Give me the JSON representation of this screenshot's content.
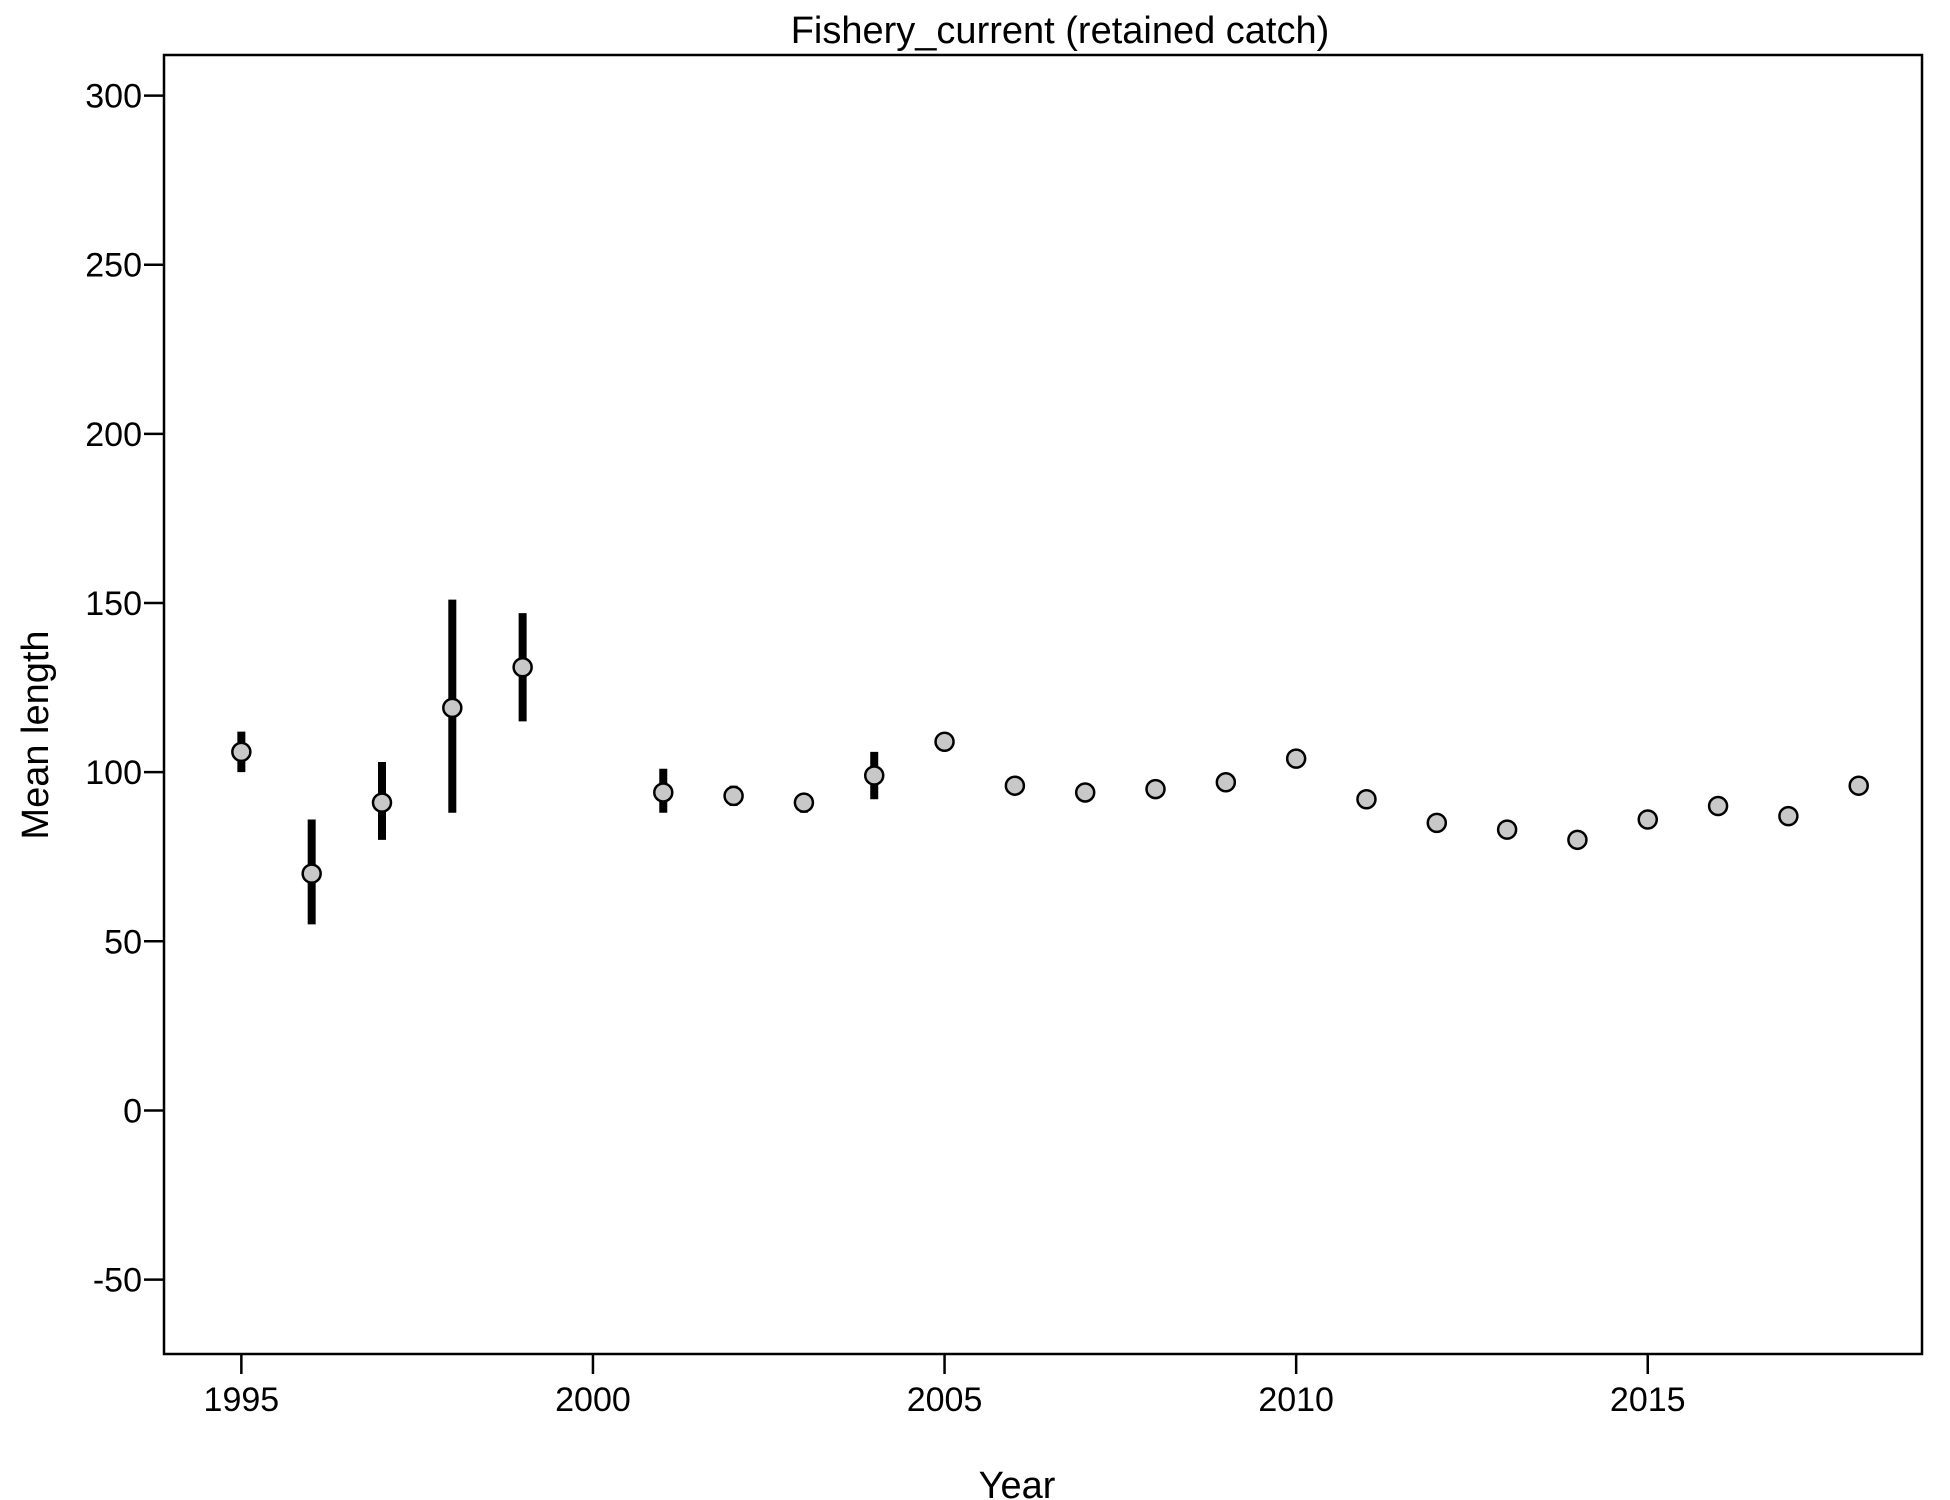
{
  "chart_data": {
    "type": "scatter",
    "title": "Fishery_current (retained catch)",
    "xlabel": "Year",
    "ylabel": "Mean length",
    "xlim": [
      1993.9,
      2018.9
    ],
    "ylim": [
      -72,
      312
    ],
    "x_ticks": [
      "1995",
      "2000",
      "2005",
      "2010",
      "2015"
    ],
    "y_ticks": [
      "-50",
      "0",
      "50",
      "100",
      "150",
      "200",
      "250",
      "300"
    ],
    "grid": false,
    "point_fill": "#c8c8c8",
    "points": [
      {
        "year": 1995,
        "mean": 106,
        "lower": 100,
        "upper": 112
      },
      {
        "year": 1996,
        "mean": 70,
        "lower": 55,
        "upper": 86
      },
      {
        "year": 1997,
        "mean": 91,
        "lower": 80,
        "upper": 103
      },
      {
        "year": 1998,
        "mean": 119,
        "lower": 88,
        "upper": 151
      },
      {
        "year": 1999,
        "mean": 131,
        "lower": 115,
        "upper": 147
      },
      {
        "year": 2001,
        "mean": 94,
        "lower": 88,
        "upper": 101
      },
      {
        "year": 2002,
        "mean": 93,
        "lower": 90,
        "upper": 96
      },
      {
        "year": 2003,
        "mean": 91,
        "lower": 88,
        "upper": 93
      },
      {
        "year": 2004,
        "mean": 99,
        "lower": 92,
        "upper": 106
      },
      {
        "year": 2005,
        "mean": 109,
        "lower": 107,
        "upper": 110
      },
      {
        "year": 2006,
        "mean": 96,
        "lower": 94,
        "upper": 97
      },
      {
        "year": 2007,
        "mean": 94,
        "lower": 92,
        "upper": 95
      },
      {
        "year": 2008,
        "mean": 95,
        "lower": 93,
        "upper": 97
      },
      {
        "year": 2009,
        "mean": 97,
        "lower": 96,
        "upper": 99
      },
      {
        "year": 2010,
        "mean": 104,
        "lower": 102,
        "upper": 105
      },
      {
        "year": 2011,
        "mean": 92,
        "lower": 90,
        "upper": 93
      },
      {
        "year": 2012,
        "mean": 85,
        "lower": 84,
        "upper": 87
      },
      {
        "year": 2013,
        "mean": 83,
        "lower": 81,
        "upper": 84
      },
      {
        "year": 2014,
        "mean": 80,
        "lower": 79,
        "upper": 81
      },
      {
        "year": 2015,
        "mean": 86,
        "lower": 85,
        "upper": 87
      },
      {
        "year": 2016,
        "mean": 90,
        "lower": 89,
        "upper": 91
      },
      {
        "year": 2017,
        "mean": 87,
        "lower": 86,
        "upper": 88
      },
      {
        "year": 2018,
        "mean": 96,
        "lower": 95,
        "upper": 97
      }
    ]
  }
}
